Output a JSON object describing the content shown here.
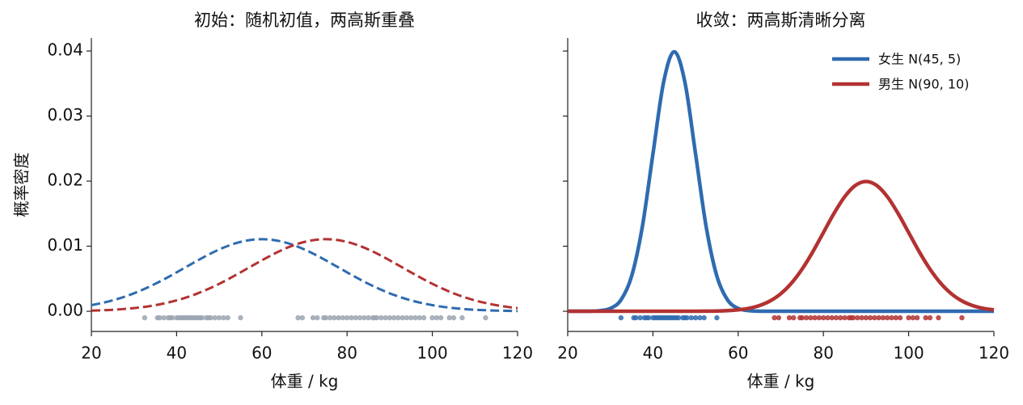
{
  "chart_data": [
    {
      "type": "line",
      "title": "初始：随机初值，两高斯重叠",
      "xlabel": "体重 / kg",
      "ylabel": "概率密度",
      "x": [
        20,
        22.5,
        25,
        27.5,
        30,
        32.5,
        35,
        37.5,
        40,
        42.5,
        45,
        47.5,
        50,
        52.5,
        55,
        57.5,
        60,
        62.5,
        65,
        67.5,
        70,
        72.5,
        75,
        77.5,
        80,
        82.5,
        85,
        87.5,
        90,
        92.5,
        95,
        97.5,
        100,
        102.5,
        105,
        107.5,
        110,
        112.5,
        115,
        117.5,
        120
      ],
      "series": [
        {
          "color": "#2f6bb0",
          "linestyle": "dashed",
          "values": [
            0.00094,
            0.00127,
            0.00167,
            0.00217,
            0.00276,
            0.00345,
            0.00422,
            0.00507,
            0.00598,
            0.00691,
            0.00783,
            0.00871,
            0.0095,
            0.01016,
            0.01066,
            0.01097,
            0.01108,
            0.01097,
            0.01066,
            0.01016,
            0.0095,
            0.00871,
            0.00783,
            0.00691,
            0.00598,
            0.00507,
            0.00422,
            0.00345,
            0.00276,
            0.00217,
            0.00167,
            0.00127,
            0.00094,
            0.00068,
            0.00049,
            0.00034,
            0.00023,
            0.00016,
            0.0001,
            7e-05,
            4e-05
          ]
        },
        {
          "color": "#b33232",
          "linestyle": "dashed",
          "values": [
            0.0001,
            0.00016,
            0.00023,
            0.00034,
            0.00049,
            0.00068,
            0.00094,
            0.00127,
            0.00167,
            0.00217,
            0.00276,
            0.00345,
            0.00422,
            0.00507,
            0.00598,
            0.00691,
            0.00783,
            0.00871,
            0.0095,
            0.01016,
            0.01066,
            0.01097,
            0.01108,
            0.01097,
            0.01066,
            0.01016,
            0.0095,
            0.00871,
            0.00783,
            0.00691,
            0.00598,
            0.00507,
            0.00422,
            0.00345,
            0.00276,
            0.00217,
            0.00167,
            0.00127,
            0.00094,
            0.00068,
            0.00049
          ]
        }
      ],
      "samples": [
        {
          "color": "#9aa5b1",
          "y": -0.001,
          "x": [
            32.5,
            35.5,
            36,
            37,
            38,
            38.5,
            39,
            40,
            40.5,
            41,
            41.5,
            42,
            42.5,
            43,
            43.5,
            44,
            44.5,
            45,
            45.5,
            46,
            47,
            47.5,
            48,
            49,
            50,
            51,
            52,
            55
          ]
        },
        {
          "color": "#9aa5b1",
          "y": -0.001,
          "x": [
            68.5,
            69.5,
            72,
            73,
            74.5,
            75,
            76,
            77,
            78,
            79,
            80,
            81,
            82,
            83,
            84,
            85,
            86,
            86.5,
            87,
            88,
            89,
            90,
            91,
            92,
            93,
            94,
            95,
            96,
            97,
            98,
            100,
            101,
            102,
            104,
            105,
            107,
            112.5
          ]
        }
      ],
      "xlim": [
        20,
        120
      ],
      "xticks": [
        20,
        40,
        60,
        80,
        100,
        120
      ],
      "ylim": [
        -0.0031,
        0.042
      ],
      "yticks": [
        {
          "value": 0,
          "label": "0.00"
        },
        {
          "value": 0.01,
          "label": "0.01"
        },
        {
          "value": 0.02,
          "label": "0.02"
        },
        {
          "value": 0.03,
          "label": "0.03"
        },
        {
          "value": 0.04,
          "label": "0.04"
        }
      ],
      "show_ytick_labels": true
    },
    {
      "type": "line",
      "title": "收敛：两高斯清晰分离",
      "xlabel": "体重 / kg",
      "legend": "upper right",
      "x": [
        20,
        22.5,
        25,
        27.5,
        30,
        32.5,
        35,
        37.5,
        40,
        42.5,
        45,
        47.5,
        50,
        52.5,
        55,
        57.5,
        60,
        62.5,
        65,
        67.5,
        70,
        72.5,
        75,
        77.5,
        80,
        82.5,
        85,
        87.5,
        90,
        92.5,
        95,
        97.5,
        100,
        102.5,
        105,
        107.5,
        110,
        112.5,
        115,
        117.5,
        120
      ],
      "series": [
        {
          "name": "女生 N(45, 5)",
          "color": "#2f6bb0",
          "linestyle": "solid",
          "values": [
            0,
            0,
            1e-05,
            9e-05,
            0.00044,
            0.00175,
            0.0054,
            0.01295,
            0.02419,
            0.0352,
            0.03989,
            0.0352,
            0.02419,
            0.01295,
            0.0054,
            0.00175,
            0.00044,
            9e-05,
            1e-05,
            0,
            0,
            0,
            0,
            0,
            0,
            0,
            0,
            0,
            0,
            0,
            0,
            0,
            0,
            0,
            0,
            0,
            0,
            0,
            0,
            0,
            0
          ]
        },
        {
          "name": "男生 N(90, 10)",
          "color": "#b33232",
          "linestyle": "solid",
          "values": [
            0,
            0,
            0,
            0,
            0,
            0,
            0,
            0,
            0,
            0,
            0,
            0,
            1e-05,
            2e-05,
            4e-05,
            0.0001,
            0.00022,
            0.00045,
            0.00088,
            0.00159,
            0.0027,
            0.00432,
            0.00648,
            0.00913,
            0.0121,
            0.01506,
            0.01761,
            0.01934,
            0.01995,
            0.01934,
            0.01761,
            0.01506,
            0.0121,
            0.00913,
            0.00648,
            0.00432,
            0.0027,
            0.00159,
            0.00088,
            0.00045,
            0.00022
          ]
        }
      ],
      "samples": [
        {
          "color": "#2f6bb0",
          "y": -0.001,
          "x": [
            32.5,
            35.5,
            36,
            37,
            38,
            38.5,
            39,
            40,
            40.5,
            41,
            41.5,
            42,
            42.5,
            43,
            43.5,
            44,
            44.5,
            45,
            45.5,
            46,
            47,
            47.5,
            48,
            49,
            50,
            51,
            52,
            55
          ]
        },
        {
          "color": "#b33232",
          "y": -0.001,
          "x": [
            68.5,
            69.5,
            72,
            73,
            74.5,
            75,
            76,
            77,
            78,
            79,
            80,
            81,
            82,
            83,
            84,
            85,
            86,
            86.5,
            87,
            88,
            89,
            90,
            91,
            92,
            93,
            94,
            95,
            96,
            97,
            98,
            100,
            101,
            102,
            104,
            105,
            107,
            112.5
          ]
        }
      ],
      "xlim": [
        20,
        120
      ],
      "xticks": [
        20,
        40,
        60,
        80,
        100,
        120
      ],
      "ylim": [
        -0.0031,
        0.042
      ],
      "yticks": [
        0,
        0.01,
        0.02,
        0.03,
        0.04
      ],
      "show_ytick_labels": false
    }
  ]
}
